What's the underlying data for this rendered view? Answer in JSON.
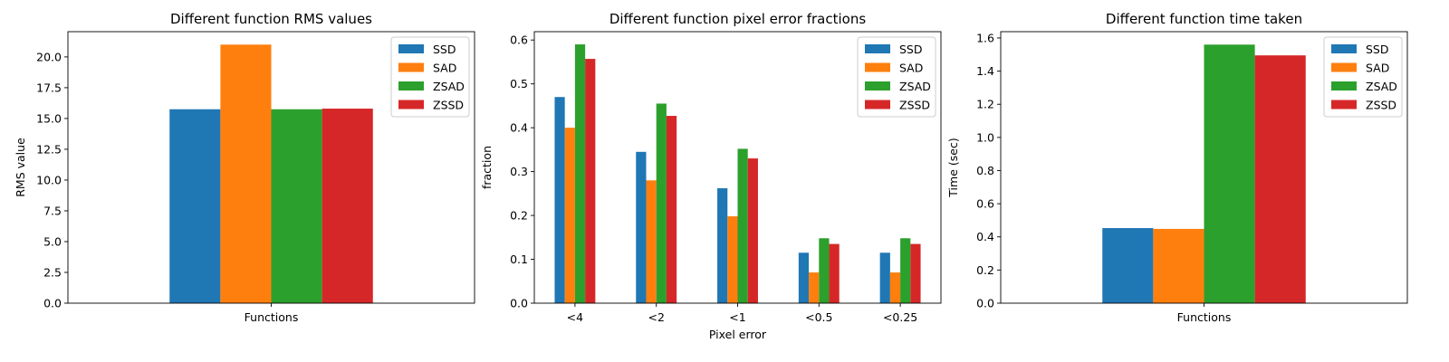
{
  "colors": {
    "SSD": "#1f77b4",
    "SAD": "#ff7f0e",
    "ZSAD": "#2ca02c",
    "ZSSD": "#d62728"
  },
  "chart_data": [
    {
      "type": "bar",
      "title": "Different function RMS values",
      "xlabel": "",
      "ylabel": "RMS value",
      "categories": [
        "Functions"
      ],
      "ylim": [
        0,
        22.05
      ],
      "yticks": [
        0.0,
        2.5,
        5.0,
        7.5,
        10.0,
        12.5,
        15.0,
        17.5,
        20.0
      ],
      "ytick_labels": [
        "0.0",
        "2.5",
        "5.0",
        "7.5",
        "10.0",
        "12.5",
        "15.0",
        "17.5",
        "20.0"
      ],
      "legend": "top-right",
      "series": [
        {
          "name": "SSD",
          "values": [
            15.75
          ]
        },
        {
          "name": "SAD",
          "values": [
            21.0
          ]
        },
        {
          "name": "ZSAD",
          "values": [
            15.75
          ]
        },
        {
          "name": "ZSSD",
          "values": [
            15.8
          ]
        }
      ]
    },
    {
      "type": "bar",
      "title": "Different function pixel error fractions",
      "xlabel": "Pixel error",
      "ylabel": "fraction",
      "categories": [
        "<4",
        "<2",
        "<1",
        "<0.5",
        "<0.25"
      ],
      "ylim": [
        0,
        0.619
      ],
      "yticks": [
        0.0,
        0.1,
        0.2,
        0.3,
        0.4,
        0.5,
        0.6
      ],
      "ytick_labels": [
        "0.0",
        "0.1",
        "0.2",
        "0.3",
        "0.4",
        "0.5",
        "0.6"
      ],
      "legend": "top-right",
      "series": [
        {
          "name": "SSD",
          "values": [
            0.47,
            0.345,
            0.262,
            0.115,
            0.115
          ]
        },
        {
          "name": "SAD",
          "values": [
            0.4,
            0.28,
            0.198,
            0.07,
            0.07
          ]
        },
        {
          "name": "ZSAD",
          "values": [
            0.59,
            0.455,
            0.352,
            0.148,
            0.148
          ]
        },
        {
          "name": "ZSSD",
          "values": [
            0.557,
            0.427,
            0.33,
            0.135,
            0.135
          ]
        }
      ]
    },
    {
      "type": "bar",
      "title": "Different function time taken",
      "xlabel": "",
      "ylabel": "Time (sec)",
      "categories": [
        "Functions"
      ],
      "ylim": [
        0,
        1.638
      ],
      "yticks": [
        0.0,
        0.2,
        0.4,
        0.6,
        0.8,
        1.0,
        1.2,
        1.4,
        1.6
      ],
      "ytick_labels": [
        "0.0",
        "0.2",
        "0.4",
        "0.6",
        "0.8",
        "1.0",
        "1.2",
        "1.4",
        "1.6"
      ],
      "legend": "top-right",
      "series": [
        {
          "name": "SSD",
          "values": [
            0.453
          ]
        },
        {
          "name": "SAD",
          "values": [
            0.448
          ]
        },
        {
          "name": "ZSAD",
          "values": [
            1.56
          ]
        },
        {
          "name": "ZSSD",
          "values": [
            1.495
          ]
        }
      ]
    }
  ]
}
